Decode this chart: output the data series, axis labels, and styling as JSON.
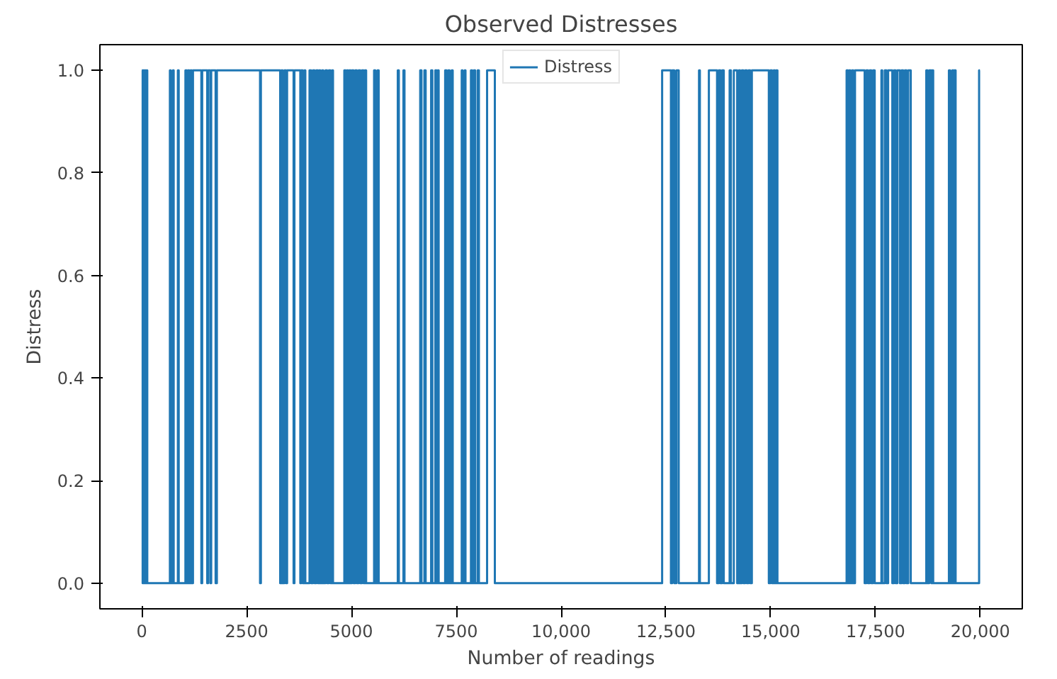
{
  "chart_data": {
    "type": "step",
    "title": "Observed Distresses",
    "xlabel": "Number of readings",
    "ylabel": "Distress",
    "xlim": [
      -1000,
      21000
    ],
    "ylim": [
      -0.05,
      1.05
    ],
    "xticks": [
      0,
      2500,
      5000,
      7500,
      {
        "value": 10000,
        "label": "10,000"
      },
      {
        "value": 12500,
        "label": "12,500"
      },
      {
        "value": 15000,
        "label": "15,000"
      },
      {
        "value": 17500,
        "label": "17,500"
      },
      {
        "value": 20000,
        "label": "20,000"
      }
    ],
    "yticks": [
      {
        "value": 0,
        "label": "0.0"
      },
      0.2,
      0.4,
      0.6,
      0.8,
      {
        "value": 1,
        "label": "1.0"
      }
    ],
    "grid": false,
    "legend": "top",
    "line_style": "solid",
    "marker": "none",
    "series": [
      {
        "name": "Distress",
        "color": "#1f77b4",
        "x": [
          0,
          20,
          40,
          60,
          80,
          100,
          120,
          130,
          670,
          690,
          740,
          760,
          860,
          880,
          1040,
          1070,
          1100,
          1130,
          1160,
          1190,
          1220,
          1420,
          1440,
          1560,
          1580,
          1635,
          1655,
          1760,
          1790,
          2820,
          2840,
          3300,
          3330,
          3360,
          3400,
          3440,
          3465,
          3620,
          3640,
          3780,
          3800,
          3840,
          3880,
          3900,
          4000,
          4040,
          4080,
          4120,
          4160,
          4200,
          4230,
          4260,
          4300,
          4330,
          4380,
          4420,
          4460,
          4500,
          4540,
          4560,
          4830,
          4860,
          4890,
          4920,
          4950,
          4980,
          5010,
          5050,
          5090,
          5130,
          5170,
          5210,
          5250,
          5290,
          5320,
          5350,
          5540,
          5570,
          5620,
          5650,
          6105,
          6130,
          6240,
          6265,
          6640,
          6670,
          6740,
          6770,
          6900,
          6930,
          7000,
          7030,
          7060,
          7080,
          7235,
          7270,
          7310,
          7340,
          7390,
          7415,
          7630,
          7650,
          7700,
          7720,
          7850,
          7880,
          7920,
          7950,
          8010,
          8040,
          8235,
          8420,
          12410,
          12620,
          12650,
          12700,
          12750,
          12805,
          13290,
          13310,
          13525,
          13720,
          13760,
          13800,
          13840,
          13880,
          14020,
          14050,
          14120,
          14200,
          14240,
          14270,
          14310,
          14350,
          14390,
          14430,
          14470,
          14510,
          14550,
          14955,
          14990,
          15030,
          15070,
          15100,
          15130,
          15160,
          16810,
          16840,
          16870,
          16900,
          16940,
          16970,
          17010,
          17240,
          17280,
          17320,
          17360,
          17400,
          17440,
          17480,
          17640,
          17660,
          17720,
          17760,
          17800,
          17900,
          17940,
          17980,
          18020,
          18080,
          18120,
          18160,
          18200,
          18240,
          18280,
          18340,
          18710,
          18740,
          18780,
          18830,
          18850,
          18875,
          19250,
          19280,
          19330,
          19360,
          19380,
          19410,
          19970,
          19990
        ],
        "values": [
          1,
          0,
          1,
          0,
          1,
          0,
          1,
          0,
          1,
          0,
          1,
          0,
          1,
          0,
          1,
          0,
          1,
          0,
          1,
          0,
          1,
          0,
          1,
          0,
          1,
          0,
          1,
          0,
          1,
          0,
          1,
          0,
          1,
          0,
          1,
          0,
          1,
          0,
          1,
          0,
          1,
          0,
          1,
          0,
          1,
          0,
          1,
          0,
          1,
          0,
          1,
          0,
          1,
          0,
          1,
          0,
          1,
          0,
          1,
          0,
          1,
          0,
          1,
          0,
          1,
          0,
          1,
          0,
          1,
          0,
          1,
          0,
          1,
          0,
          1,
          0,
          1,
          0,
          1,
          0,
          1,
          0,
          1,
          0,
          1,
          0,
          1,
          0,
          1,
          0,
          1,
          0,
          1,
          0,
          1,
          0,
          1,
          0,
          1,
          0,
          1,
          0,
          1,
          0,
          1,
          0,
          1,
          0,
          1,
          0,
          1,
          0,
          1,
          0,
          1,
          0,
          1,
          0,
          1,
          0,
          1,
          0,
          1,
          0,
          1,
          0,
          1,
          0,
          1,
          0,
          1,
          0,
          1,
          0,
          1,
          0,
          1,
          0,
          1,
          0,
          1,
          0,
          1,
          0,
          1,
          0,
          1,
          0,
          1,
          0,
          1,
          0,
          1,
          0,
          1,
          0,
          1,
          0,
          1,
          0,
          1,
          0,
          1,
          0,
          1,
          0,
          1,
          0,
          1,
          0,
          1,
          0,
          1,
          0,
          1,
          0,
          1,
          0,
          1,
          0,
          1,
          0,
          1,
          0,
          1,
          0,
          1,
          0,
          1,
          1
        ]
      }
    ]
  }
}
